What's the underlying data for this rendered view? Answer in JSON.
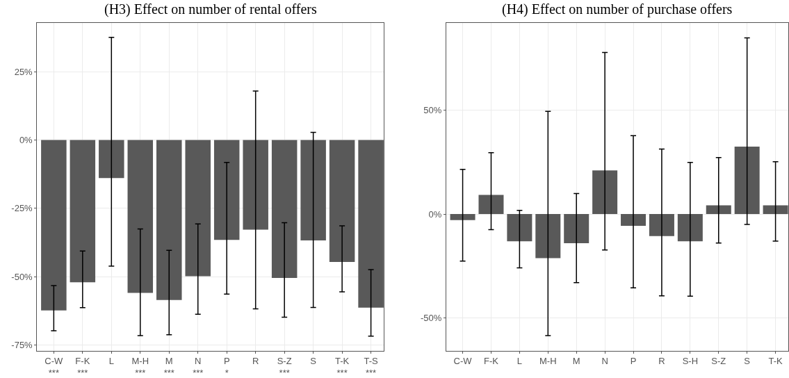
{
  "chart_data": [
    {
      "type": "bar",
      "title": "(H3) Effect on number of rental offers",
      "categories": [
        "C-W\n***",
        "F-K\n***",
        "L",
        "M-H\n***",
        "M\n***",
        "N\n***",
        "P\n*",
        "R",
        "S-Z\n***",
        "S",
        "T-K\n***",
        "T-S\n***"
      ],
      "values": [
        -62.3,
        -52.0,
        -13.9,
        -55.9,
        -58.5,
        -49.8,
        -36.5,
        -32.8,
        -50.4,
        -36.7,
        -44.6,
        -61.3
      ],
      "errors": [
        [
          -69.7,
          -53.2
        ],
        [
          -61.3,
          -40.6
        ],
        [
          -46.1,
          37.5
        ],
        [
          -71.5,
          -32.5
        ],
        [
          -71.2,
          -40.3
        ],
        [
          -63.7,
          -30.7
        ],
        [
          -56.3,
          -8.2
        ],
        [
          -61.7,
          17.9
        ],
        [
          -64.8,
          -30.2
        ],
        [
          -61.2,
          2.8
        ],
        [
          -55.5,
          -31.4
        ],
        [
          -71.7,
          -47.4
        ]
      ],
      "color": "#595959",
      "ylim": [
        -77,
        42.7
      ],
      "yticks": [
        {
          "value": -75,
          "label": "-75%"
        },
        {
          "value": -50,
          "label": "-50%"
        },
        {
          "value": -25,
          "label": "-25%"
        },
        {
          "value": 0,
          "label": "0%"
        },
        {
          "value": 25,
          "label": "25%"
        }
      ],
      "grid": true
    },
    {
      "type": "bar",
      "title": "(H4) Effect on number of purchase offers",
      "categories": [
        "C-W",
        "F-K",
        "L",
        "M-H",
        "M",
        "N",
        "P",
        "R",
        "S-H",
        "S-Z",
        "S",
        "T-K"
      ],
      "values": [
        -2.9,
        9.2,
        -13.1,
        -21.2,
        -14.0,
        21.0,
        -5.7,
        -10.6,
        -13.1,
        4.2,
        32.4,
        4.2
      ],
      "errors": [
        [
          -22.6,
          21.5
        ],
        [
          -7.5,
          29.5
        ],
        [
          -25.9,
          1.8
        ],
        [
          -58.5,
          49.4
        ],
        [
          -33.0,
          9.9
        ],
        [
          -17.3,
          77.7
        ],
        [
          -35.5,
          37.7
        ],
        [
          -39.3,
          31.3
        ],
        [
          -39.5,
          24.8
        ],
        [
          -13.9,
          27.2
        ],
        [
          -5.0,
          84.7
        ],
        [
          -13.0,
          25.2
        ]
      ],
      "color": "#595959",
      "ylim": [
        -65.7,
        91.8
      ],
      "yticks": [
        {
          "value": -50,
          "label": "-50%"
        },
        {
          "value": 0,
          "label": "0%"
        },
        {
          "value": 50,
          "label": "50%"
        }
      ],
      "grid": true
    }
  ]
}
